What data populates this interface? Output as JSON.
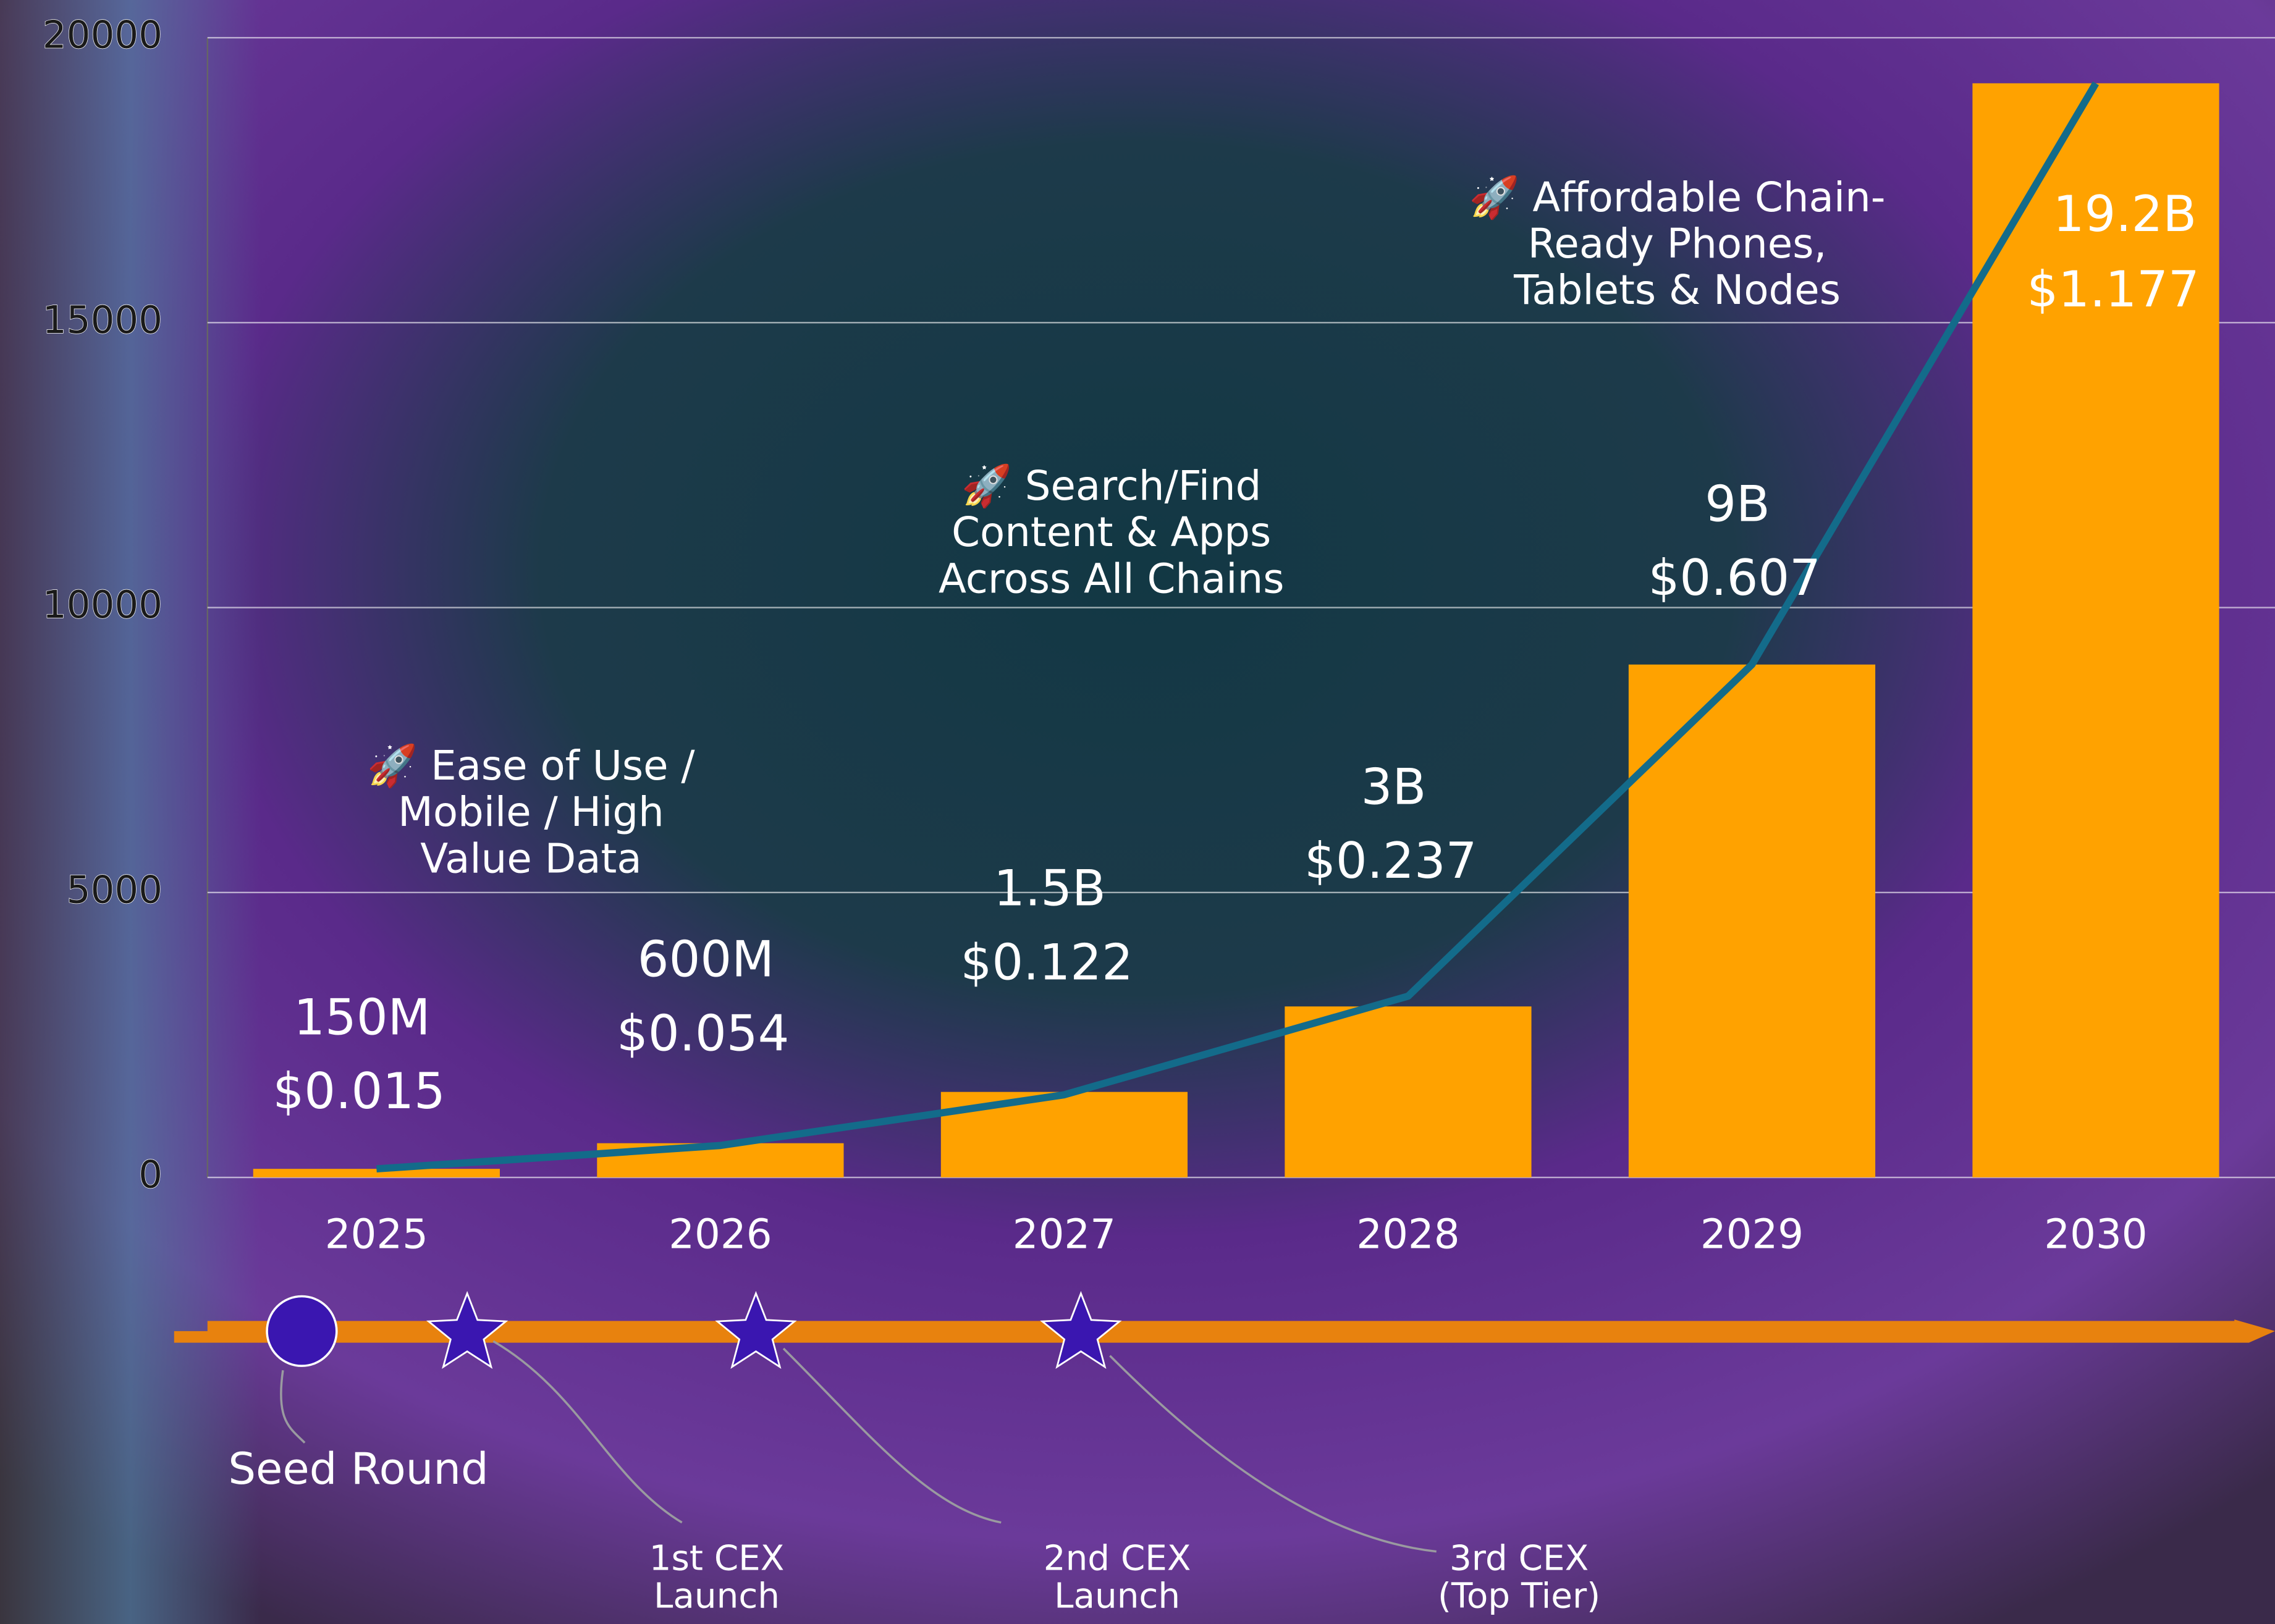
{
  "chart_data": {
    "type": "bar",
    "categories": [
      "2025",
      "2026",
      "2027",
      "2028",
      "2029",
      "2030"
    ],
    "series": [
      {
        "type": "bar",
        "color": "#ffa200",
        "values": [
          150,
          600,
          1500,
          3000,
          9000,
          19200
        ],
        "value_labels": [
          "150M",
          "600M",
          "1.5B",
          "3B",
          "9B",
          "19.2B"
        ]
      },
      {
        "type": "line",
        "color": "#136b8a",
        "values": [
          150,
          560,
          1450,
          3180,
          9000,
          19200
        ]
      }
    ],
    "price_labels": [
      "$0.015",
      "$0.054",
      "$0.122",
      "$0.237",
      "$0.607",
      "$1.177"
    ],
    "ylim": [
      0,
      20000
    ],
    "yticks": [
      0,
      5000,
      10000,
      15000,
      20000
    ],
    "grid": true,
    "annotations": [
      [
        "🚀 Ease of Use /",
        "Mobile / High",
        "Value Data"
      ],
      [
        "🚀 Search/Find",
        "Content & Apps",
        "Across All Chains"
      ],
      [
        "🚀 Affordable Chain-",
        "Ready Phones,",
        "Tablets & Nodes"
      ]
    ],
    "timeline": [
      [
        "Seed Round"
      ],
      [
        "1st CEX",
        "Launch"
      ],
      [
        "2nd CEX",
        "Launch"
      ],
      [
        "3rd CEX",
        "(Top Tier)"
      ]
    ]
  }
}
